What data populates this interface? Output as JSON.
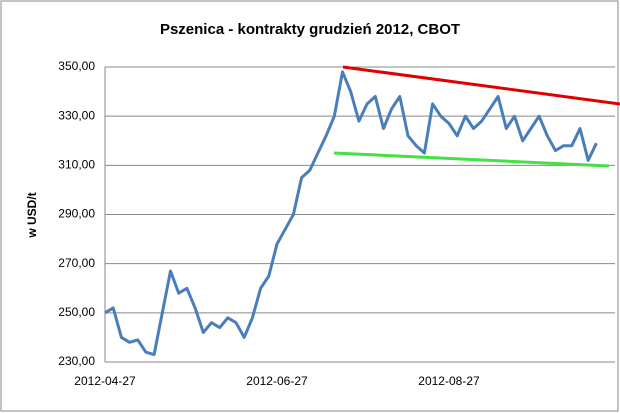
{
  "chart_data": {
    "type": "line",
    "title": "Pszenica - kontrakty grudzień 2012, CBOT",
    "y_label": "w USD/t",
    "categories": [
      "2012-04-27",
      null,
      null,
      null,
      null,
      null,
      null,
      null,
      null,
      null,
      null,
      null,
      null,
      null,
      null,
      null,
      null,
      null,
      null,
      null,
      null,
      "2012-06-27",
      null,
      null,
      null,
      null,
      null,
      null,
      null,
      null,
      null,
      null,
      null,
      null,
      null,
      null,
      null,
      null,
      null,
      null,
      null,
      null,
      "2012-08-27",
      null,
      null,
      null,
      null,
      null,
      null,
      null,
      null,
      null,
      null,
      null,
      null,
      null,
      null,
      null,
      null,
      null,
      null
    ],
    "series": [
      {
        "color": "#4a7ebb",
        "values": [
          250,
          252,
          240,
          238,
          239,
          234,
          233,
          250,
          267,
          258,
          260,
          252,
          242,
          246,
          244,
          248,
          246,
          240,
          248,
          260,
          265,
          278,
          284,
          290,
          305,
          308,
          315,
          322,
          330,
          348,
          340,
          328,
          335,
          338,
          325,
          333,
          338,
          322,
          318,
          315,
          335,
          330,
          327,
          322,
          330,
          325,
          328,
          333,
          338,
          325,
          330,
          320,
          325,
          330,
          322,
          316,
          318,
          318,
          325,
          312,
          319
        ]
      }
    ],
    "ylim": [
      230,
      350
    ],
    "yticks": [
      {
        "value": 230,
        "label": "230,00"
      },
      {
        "value": 250,
        "label": "250,00"
      },
      {
        "value": 270,
        "label": "270,00"
      },
      {
        "value": 290,
        "label": "290,00"
      },
      {
        "value": 310,
        "label": "310,00"
      },
      {
        "value": 330,
        "label": "330,00"
      },
      {
        "value": 350,
        "label": "350,00"
      }
    ],
    "grid": true
  }
}
